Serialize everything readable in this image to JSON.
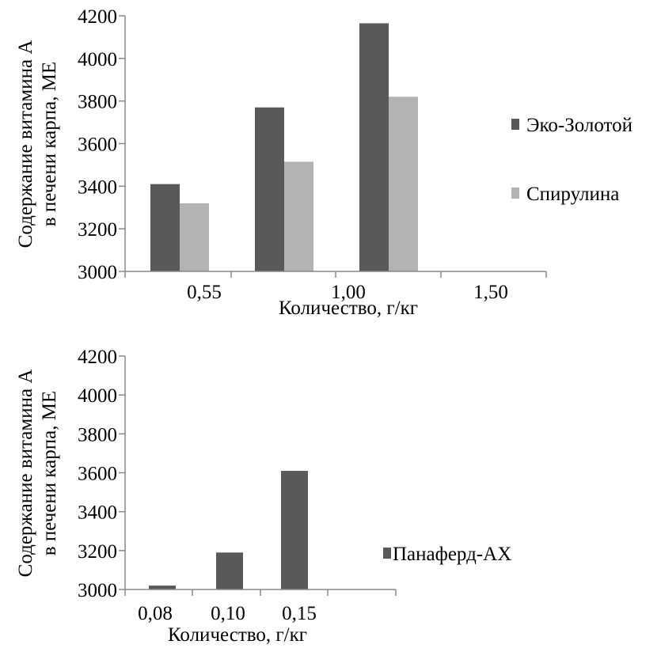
{
  "chart_data": [
    {
      "type": "bar",
      "categories": [
        "0,55",
        "1,00",
        "1,50"
      ],
      "series": [
        {
          "name": "Эко-Золотой",
          "values": [
            3410,
            3770,
            4165
          ],
          "color": "#595959"
        },
        {
          "name": "Спирулина",
          "values": [
            3320,
            3515,
            3820
          ],
          "color": "#b3b3b3"
        }
      ],
      "yticks": [
        "3000",
        "3200",
        "3400",
        "3600",
        "3800",
        "4000",
        "4200"
      ],
      "ylim": [
        3000,
        4200
      ],
      "xlabel": "Количество, г/кг",
      "ylabel_lines": [
        "Содержание витамина А",
        "в печени карпа, МЕ"
      ],
      "legend_position": "right",
      "grid": false
    },
    {
      "type": "bar",
      "categories": [
        "0,08",
        "0,10",
        "0,15"
      ],
      "series": [
        {
          "name": "Панаферд-АХ",
          "values": [
            3020,
            3190,
            3610
          ],
          "color": "#595959"
        }
      ],
      "yticks": [
        "3000",
        "3200",
        "3400",
        "3600",
        "3800",
        "4000",
        "4200"
      ],
      "ylim": [
        3000,
        4200
      ],
      "xlabel": "Количество, г/кг",
      "ylabel_lines": [
        "Содержание витамина А",
        "в печени карпа, МЕ"
      ],
      "legend_position": "right",
      "grid": false
    }
  ]
}
